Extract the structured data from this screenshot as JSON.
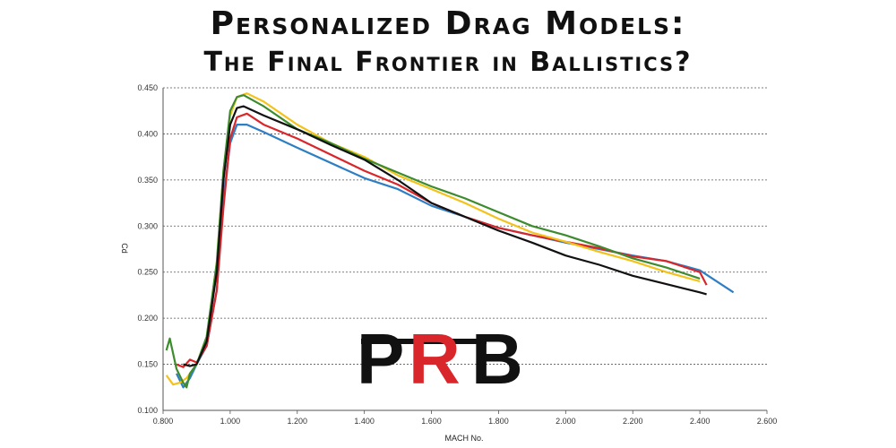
{
  "header": {
    "title": "Personalized Drag Models:",
    "subtitle": "The Final Frontier in Ballistics?"
  },
  "logo": {
    "letters": [
      "P",
      "R",
      "B"
    ],
    "colors": [
      "#111111",
      "#d9262a",
      "#111111"
    ]
  },
  "chart_data": {
    "type": "line",
    "xlabel": "MACH No.",
    "ylabel": "Cd",
    "xlim": [
      0.8,
      2.6
    ],
    "ylim": [
      0.1,
      0.45
    ],
    "xticks": [
      "0.800",
      "1.000",
      "1.200",
      "1.400",
      "1.600",
      "1.800",
      "2.000",
      "2.200",
      "2.400",
      "2.600"
    ],
    "yticks": [
      "0.100",
      "0.150",
      "0.200",
      "0.250",
      "0.300",
      "0.350",
      "0.400",
      "0.450"
    ],
    "grid": "horizontal-dashed",
    "series": [
      {
        "color": "#2e7ec4",
        "points": [
          [
            0.84,
            0.14
          ],
          [
            0.86,
            0.125
          ],
          [
            0.88,
            0.135
          ],
          [
            0.9,
            0.15
          ],
          [
            0.93,
            0.17
          ],
          [
            0.96,
            0.23
          ],
          [
            0.98,
            0.33
          ],
          [
            1.0,
            0.39
          ],
          [
            1.02,
            0.41
          ],
          [
            1.05,
            0.41
          ],
          [
            1.1,
            0.402
          ],
          [
            1.2,
            0.385
          ],
          [
            1.4,
            0.352
          ],
          [
            1.5,
            0.34
          ],
          [
            1.6,
            0.322
          ],
          [
            1.7,
            0.31
          ],
          [
            1.8,
            0.298
          ],
          [
            1.9,
            0.29
          ],
          [
            2.0,
            0.282
          ],
          [
            2.1,
            0.275
          ],
          [
            2.2,
            0.268
          ],
          [
            2.3,
            0.262
          ],
          [
            2.4,
            0.252
          ],
          [
            2.5,
            0.228
          ]
        ]
      },
      {
        "color": "#d9262a",
        "points": [
          [
            0.84,
            0.15
          ],
          [
            0.86,
            0.147
          ],
          [
            0.88,
            0.155
          ],
          [
            0.9,
            0.152
          ],
          [
            0.93,
            0.17
          ],
          [
            0.96,
            0.23
          ],
          [
            0.98,
            0.32
          ],
          [
            1.0,
            0.395
          ],
          [
            1.02,
            0.418
          ],
          [
            1.05,
            0.422
          ],
          [
            1.1,
            0.41
          ],
          [
            1.2,
            0.395
          ],
          [
            1.4,
            0.36
          ],
          [
            1.5,
            0.345
          ],
          [
            1.6,
            0.325
          ],
          [
            1.7,
            0.31
          ],
          [
            1.8,
            0.298
          ],
          [
            1.9,
            0.29
          ],
          [
            2.0,
            0.283
          ],
          [
            2.1,
            0.276
          ],
          [
            2.2,
            0.267
          ],
          [
            2.3,
            0.262
          ],
          [
            2.4,
            0.25
          ],
          [
            2.42,
            0.236
          ]
        ]
      },
      {
        "color": "#f3c21b",
        "points": [
          [
            0.81,
            0.138
          ],
          [
            0.83,
            0.128
          ],
          [
            0.85,
            0.13
          ],
          [
            0.87,
            0.135
          ],
          [
            0.9,
            0.15
          ],
          [
            0.93,
            0.18
          ],
          [
            0.96,
            0.26
          ],
          [
            0.98,
            0.36
          ],
          [
            1.0,
            0.42
          ],
          [
            1.02,
            0.44
          ],
          [
            1.05,
            0.444
          ],
          [
            1.1,
            0.435
          ],
          [
            1.2,
            0.41
          ],
          [
            1.3,
            0.39
          ],
          [
            1.4,
            0.375
          ],
          [
            1.5,
            0.355
          ],
          [
            1.6,
            0.34
          ],
          [
            1.7,
            0.325
          ],
          [
            1.8,
            0.308
          ],
          [
            1.9,
            0.293
          ],
          [
            2.0,
            0.283
          ],
          [
            2.1,
            0.272
          ],
          [
            2.2,
            0.262
          ],
          [
            2.3,
            0.25
          ],
          [
            2.4,
            0.24
          ]
        ]
      },
      {
        "color": "#3c8c2e",
        "points": [
          [
            0.81,
            0.165
          ],
          [
            0.82,
            0.178
          ],
          [
            0.84,
            0.145
          ],
          [
            0.86,
            0.13
          ],
          [
            0.87,
            0.125
          ],
          [
            0.88,
            0.14
          ],
          [
            0.9,
            0.15
          ],
          [
            0.93,
            0.18
          ],
          [
            0.96,
            0.26
          ],
          [
            0.98,
            0.36
          ],
          [
            1.0,
            0.425
          ],
          [
            1.02,
            0.44
          ],
          [
            1.04,
            0.442
          ],
          [
            1.1,
            0.43
          ],
          [
            1.2,
            0.405
          ],
          [
            1.3,
            0.39
          ],
          [
            1.4,
            0.373
          ],
          [
            1.5,
            0.358
          ],
          [
            1.6,
            0.343
          ],
          [
            1.7,
            0.33
          ],
          [
            1.8,
            0.315
          ],
          [
            1.9,
            0.3
          ],
          [
            2.0,
            0.29
          ],
          [
            2.1,
            0.278
          ],
          [
            2.2,
            0.265
          ],
          [
            2.3,
            0.255
          ],
          [
            2.4,
            0.243
          ]
        ]
      },
      {
        "color": "#111111",
        "points": [
          [
            0.86,
            0.15
          ],
          [
            0.88,
            0.148
          ],
          [
            0.9,
            0.15
          ],
          [
            0.93,
            0.175
          ],
          [
            0.96,
            0.25
          ],
          [
            0.98,
            0.35
          ],
          [
            1.0,
            0.41
          ],
          [
            1.02,
            0.428
          ],
          [
            1.04,
            0.43
          ],
          [
            1.1,
            0.42
          ],
          [
            1.2,
            0.405
          ],
          [
            1.3,
            0.388
          ],
          [
            1.4,
            0.372
          ],
          [
            1.5,
            0.35
          ],
          [
            1.6,
            0.325
          ],
          [
            1.7,
            0.31
          ],
          [
            1.8,
            0.295
          ],
          [
            1.9,
            0.282
          ],
          [
            2.0,
            0.268
          ],
          [
            2.1,
            0.258
          ],
          [
            2.2,
            0.246
          ],
          [
            2.3,
            0.237
          ],
          [
            2.4,
            0.228
          ],
          [
            2.42,
            0.226
          ]
        ]
      }
    ]
  }
}
